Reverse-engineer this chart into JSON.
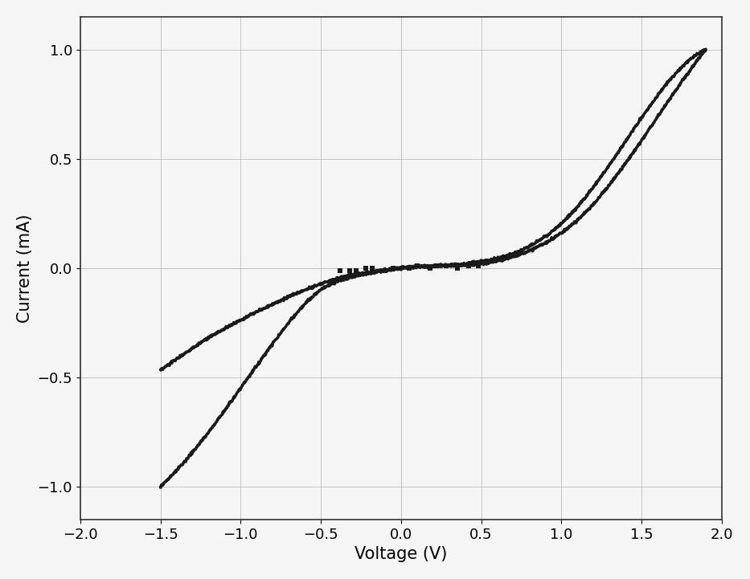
{
  "title": "",
  "xlabel": "Voltage (V)",
  "ylabel": "Current (mA)",
  "xlim": [
    -2.0,
    2.0
  ],
  "ylim": [
    -1.15,
    1.15
  ],
  "xticks": [
    -2.0,
    -1.5,
    -1.0,
    -0.5,
    0.0,
    0.5,
    1.0,
    1.5,
    2.0
  ],
  "yticks": [
    -1.0,
    -0.5,
    0.0,
    0.5,
    1.0
  ],
  "grid_color": "#c0c0c0",
  "line_color": "#1a1a1a",
  "background_color": "#f5f5f5",
  "xlabel_fontsize": 15,
  "ylabel_fontsize": 15,
  "tick_fontsize": 13,
  "linewidth": 2.5
}
